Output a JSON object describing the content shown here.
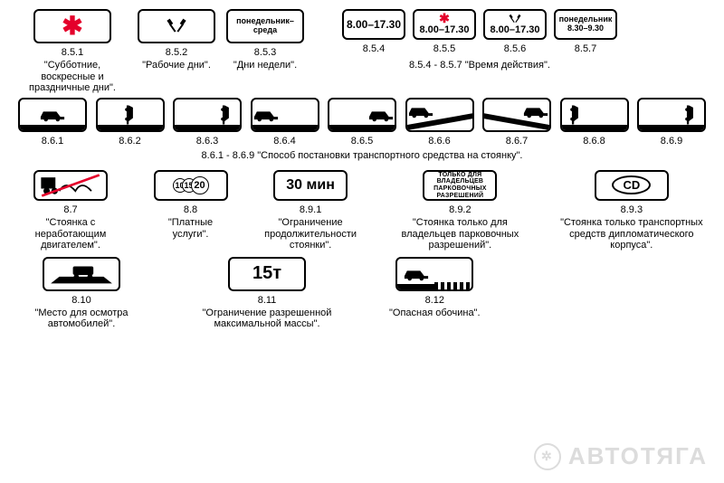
{
  "colors": {
    "text": "#000000",
    "bg": "#ffffff",
    "accent": "#e4002b",
    "watermark": "#dcdcdc",
    "border": "#000000"
  },
  "typography": {
    "base_font_family": "Arial, sans-serif",
    "code_size": 11,
    "caption_size": 11
  },
  "watermark": {
    "text": "АВТОТЯГА"
  },
  "row1": {
    "s1": {
      "code": "8.5.1",
      "caption": "\"Субботние, воскресные и праздничные дни\"."
    },
    "s2": {
      "code": "8.5.2",
      "caption": "\"Рабочие дни\"."
    },
    "s3": {
      "code": "8.5.3",
      "caption": "\"Дни недели\".",
      "inner": "понедельник–\nсреда"
    },
    "s4": {
      "code": "8.5.4",
      "inner": "8.00–17.30"
    },
    "s5": {
      "code": "8.5.5",
      "inner": "8.00–17.30"
    },
    "s6": {
      "code": "8.5.6",
      "inner": "8.00–17.30"
    },
    "s7": {
      "code": "8.5.7",
      "inner": "понедельник\n8.30–9.30"
    },
    "group_caption": "8.5.4 - 8.5.7 \"Время действия\"."
  },
  "row2": {
    "codes": [
      "8.6.1",
      "8.6.2",
      "8.6.3",
      "8.6.4",
      "8.6.5",
      "8.6.6",
      "8.6.7",
      "8.6.8",
      "8.6.9"
    ],
    "group_caption": "8.6.1 - 8.6.9 \"Способ постановки транспортного средства на стоянку\"."
  },
  "row3": {
    "s1": {
      "code": "8.7",
      "caption": "\"Стоянка с неработающим двигателем\"."
    },
    "s2": {
      "code": "8.8",
      "caption": "\"Платные услуги\".",
      "nums": [
        "10",
        "15",
        "20"
      ]
    },
    "s3": {
      "code": "8.9.1",
      "caption": "\"Ограничение продолжительности стоянки\".",
      "inner": "30 мин"
    },
    "s4": {
      "code": "8.9.2",
      "caption": "\"Стоянка только для владельцев парковочных разрешений\".",
      "inner": "ТОЛЬКО ДЛЯ\nВЛАДЕЛЬЦЕВ\nПАРКОВОЧНЫХ\nРАЗРЕШЕНИЙ"
    },
    "s5": {
      "code": "8.9.3",
      "caption": "\"Стоянка только транспортных средств дипломатического корпуса\".",
      "inner": "CD"
    }
  },
  "row4": {
    "s1": {
      "code": "8.10",
      "caption": "\"Место для осмотра автомобилей\"."
    },
    "s2": {
      "code": "8.11",
      "caption": "\"Ограничение разрешенной максимальной массы\".",
      "inner": "15т"
    },
    "s3": {
      "code": "8.12",
      "caption": "\"Опасная обочина\"."
    }
  }
}
